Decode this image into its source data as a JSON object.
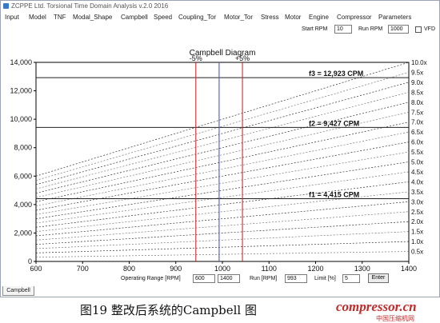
{
  "window": {
    "title": "ZCPPE Ltd. Torsional Time Domain Analysis v.2.0 2016"
  },
  "menu": [
    "Input",
    "Model",
    "TNF",
    "Modal_Shape",
    "Campbell",
    "Speed",
    "Coupling_Tor",
    "Motor_Tor",
    "Stress",
    "Motor",
    "Engine",
    "Compressor",
    "Parameters"
  ],
  "rpm_bar": {
    "start_rpm_label": "Start RPM",
    "start_rpm_value": "10",
    "run_rpm_label": "Run RPM",
    "run_rpm_value": "1000",
    "vfd_label": "VFD"
  },
  "controls": {
    "operating_range_label": "Operating Range [RPM]",
    "operating_range_min": "600",
    "operating_range_max": "1400",
    "run_label": "Run [RPM]",
    "run_value": "993",
    "limit_label": "Limit [%]",
    "limit_value": "5",
    "enter_label": "Enter"
  },
  "tab": {
    "label": "Campbell"
  },
  "caption": {
    "text": "图19  整改后系统的Campbell 图"
  },
  "watermark": {
    "text": "compressor.cn",
    "sub": "中国压缩机网"
  },
  "colors": {
    "margin_line": "#cc2a2a",
    "run_line": "#4a5fa8",
    "freq_line": "#222222",
    "order_line": "#333333"
  },
  "chart_data": {
    "type": "line",
    "title": "Campbell Diagram",
    "xlim": [
      600,
      1400
    ],
    "ylim": [
      0,
      14000
    ],
    "x_ticks": [
      "600",
      "700",
      "800",
      "900",
      "1000",
      "1100",
      "1200",
      "1300",
      "1400"
    ],
    "y_ticks": [
      "0",
      "2,000",
      "4,000",
      "6,000",
      "8,000",
      "10,000",
      "12,000",
      "14,000"
    ],
    "orders": [
      0.5,
      1.0,
      1.5,
      2.0,
      2.5,
      3.0,
      3.5,
      4.0,
      4.5,
      5.0,
      5.5,
      6.0,
      6.5,
      7.0,
      7.5,
      8.0,
      8.5,
      9.0,
      9.5,
      10.0
    ],
    "order_labels": [
      "0.5x",
      "1.0x",
      "1.5x",
      "2.0x",
      "2.5x",
      "3.0x",
      "3.5x",
      "4.0x",
      "4.5x",
      "5.0x",
      "5.5x",
      "6.0x",
      "6.5x",
      "7.0x",
      "7.5x",
      "8.0x",
      "8.5x",
      "9.0x",
      "9.5x",
      "10.0x"
    ],
    "natural_frequencies": [
      {
        "name": "f1",
        "value": 4415,
        "label": "f1 =   4,415 CPM"
      },
      {
        "name": "f2",
        "value": 9427,
        "label": "f2 =   9,427 CPM"
      },
      {
        "name": "f3",
        "value": 12923,
        "label": "f3 =  12,923 CPM"
      }
    ],
    "run_speed": 993,
    "margin_lines": [
      {
        "value": 943,
        "label": "-5%"
      },
      {
        "value": 1043,
        "label": "+5%"
      }
    ]
  }
}
